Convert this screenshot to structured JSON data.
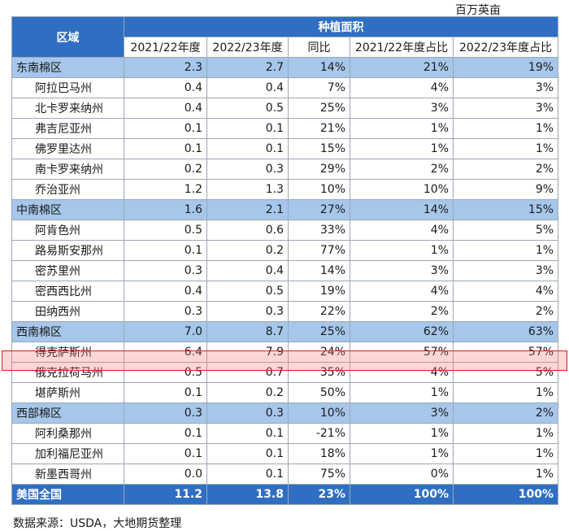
{
  "unit": "百万英亩",
  "source": "数据来源：USDA，大地期货整理",
  "colors": {
    "header": "#2f6fc3",
    "region_row": "#a6c7eb",
    "highlight": "#e02020"
  },
  "chart_data": {
    "type": "table",
    "title": "种植面积",
    "row_header": "区域",
    "columns": [
      "2021/22年度",
      "2022/23年度",
      "同比",
      "2021/22年度占比",
      "2022/23年度占比"
    ],
    "highlighted_row": "得克萨斯州",
    "rows": [
      {
        "name": "东南棉区",
        "kind": "region",
        "values": [
          "2.3",
          "2.7",
          "14%",
          "21%",
          "19%"
        ]
      },
      {
        "name": "阿拉巴马州",
        "kind": "state",
        "values": [
          "0.4",
          "0.4",
          "7%",
          "4%",
          "3%"
        ]
      },
      {
        "name": "北卡罗来纳州",
        "kind": "state",
        "values": [
          "0.4",
          "0.5",
          "25%",
          "3%",
          "3%"
        ]
      },
      {
        "name": "弗吉尼亚州",
        "kind": "state",
        "values": [
          "0.1",
          "0.1",
          "21%",
          "1%",
          "1%"
        ]
      },
      {
        "name": "佛罗里达州",
        "kind": "state",
        "values": [
          "0.1",
          "0.1",
          "15%",
          "1%",
          "1%"
        ]
      },
      {
        "name": "南卡罗来纳州",
        "kind": "state",
        "values": [
          "0.2",
          "0.3",
          "29%",
          "2%",
          "2%"
        ]
      },
      {
        "name": "乔治亚州",
        "kind": "state",
        "values": [
          "1.2",
          "1.3",
          "10%",
          "10%",
          "9%"
        ]
      },
      {
        "name": "中南棉区",
        "kind": "region",
        "values": [
          "1.6",
          "2.1",
          "27%",
          "14%",
          "15%"
        ]
      },
      {
        "name": "阿肯色州",
        "kind": "state",
        "values": [
          "0.5",
          "0.6",
          "33%",
          "4%",
          "5%"
        ]
      },
      {
        "name": "路易斯安那州",
        "kind": "state",
        "values": [
          "0.1",
          "0.2",
          "77%",
          "1%",
          "1%"
        ]
      },
      {
        "name": "密苏里州",
        "kind": "state",
        "values": [
          "0.3",
          "0.4",
          "14%",
          "3%",
          "3%"
        ]
      },
      {
        "name": "密西西比州",
        "kind": "state",
        "values": [
          "0.4",
          "0.5",
          "19%",
          "4%",
          "4%"
        ]
      },
      {
        "name": "田纳西州",
        "kind": "state",
        "values": [
          "0.3",
          "0.3",
          "22%",
          "2%",
          "2%"
        ]
      },
      {
        "name": "西南棉区",
        "kind": "region",
        "values": [
          "7.0",
          "8.7",
          "25%",
          "62%",
          "63%"
        ]
      },
      {
        "name": "得克萨斯州",
        "kind": "state",
        "values": [
          "6.4",
          "7.9",
          "24%",
          "57%",
          "57%"
        ]
      },
      {
        "name": "俄克拉荷马州",
        "kind": "state",
        "values": [
          "0.5",
          "0.7",
          "35%",
          "4%",
          "5%"
        ]
      },
      {
        "name": "堪萨斯州",
        "kind": "state",
        "values": [
          "0.1",
          "0.2",
          "50%",
          "1%",
          "1%"
        ]
      },
      {
        "name": "西部棉区",
        "kind": "region",
        "values": [
          "0.3",
          "0.3",
          "10%",
          "3%",
          "2%"
        ]
      },
      {
        "name": "阿利桑那州",
        "kind": "state",
        "values": [
          "0.1",
          "0.1",
          "-21%",
          "1%",
          "1%"
        ]
      },
      {
        "name": "加利福尼亚州",
        "kind": "state",
        "values": [
          "0.1",
          "0.1",
          "18%",
          "1%",
          "1%"
        ]
      },
      {
        "name": "新墨西哥州",
        "kind": "state",
        "values": [
          "0.0",
          "0.1",
          "75%",
          "0%",
          "1%"
        ]
      },
      {
        "name": "美国全国",
        "kind": "total",
        "values": [
          "11.2",
          "13.8",
          "23%",
          "100%",
          "100%"
        ]
      }
    ]
  }
}
